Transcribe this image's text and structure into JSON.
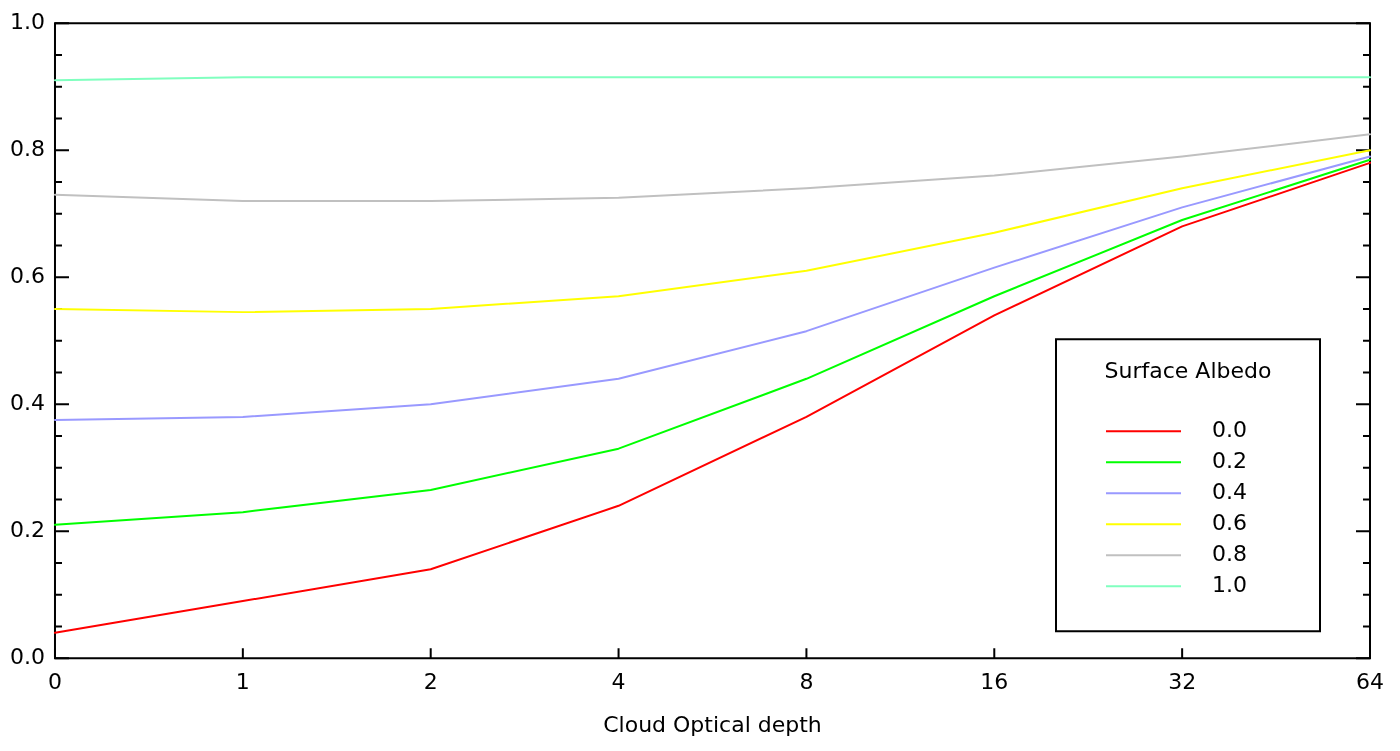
{
  "chart_data": {
    "type": "line",
    "xlabel": "Cloud Optical depth",
    "legend_title": "Surface Albedo",
    "legend": "bottom right",
    "grid": false,
    "marker": "none",
    "line_style": "solid",
    "categories": [
      "0",
      "1",
      "2",
      "4",
      "8",
      "16",
      "32",
      "64"
    ],
    "ylim": [
      0,
      1
    ],
    "yticks": [
      {
        "value": 0,
        "label": "0.0"
      },
      {
        "value": 0.05,
        "label": null
      },
      {
        "value": 0.1,
        "label": null
      },
      {
        "value": 0.15,
        "label": null
      },
      {
        "value": 0.2,
        "label": "0.2"
      },
      {
        "value": 0.25,
        "label": null
      },
      {
        "value": 0.3,
        "label": null
      },
      {
        "value": 0.35,
        "label": null
      },
      {
        "value": 0.4,
        "label": "0.4"
      },
      {
        "value": 0.45,
        "label": null
      },
      {
        "value": 0.5,
        "label": null
      },
      {
        "value": 0.55,
        "label": null
      },
      {
        "value": 0.6,
        "label": "0.6"
      },
      {
        "value": 0.65,
        "label": null
      },
      {
        "value": 0.7,
        "label": null
      },
      {
        "value": 0.75,
        "label": null
      },
      {
        "value": 0.8,
        "label": "0.8"
      },
      {
        "value": 0.85,
        "label": null
      },
      {
        "value": 0.9,
        "label": null
      },
      {
        "value": 0.95,
        "label": null
      },
      {
        "value": 1,
        "label": "1.0"
      }
    ],
    "series": [
      {
        "name": "0.0",
        "color": "#ff0000",
        "values": [
          0.04,
          0.09,
          0.14,
          0.24,
          0.38,
          0.54,
          0.68,
          0.78
        ]
      },
      {
        "name": "0.2",
        "color": "#00ff00",
        "values": [
          0.21,
          0.23,
          0.265,
          0.33,
          0.44,
          0.57,
          0.69,
          0.785
        ]
      },
      {
        "name": "0.4",
        "color": "#9999ff",
        "values": [
          0.375,
          0.38,
          0.4,
          0.44,
          0.515,
          0.615,
          0.71,
          0.79
        ]
      },
      {
        "name": "0.6",
        "color": "#ffff00",
        "values": [
          0.55,
          0.545,
          0.55,
          0.57,
          0.61,
          0.67,
          0.74,
          0.8
        ]
      },
      {
        "name": "0.8",
        "color": "#c0c0c0",
        "values": [
          0.73,
          0.72,
          0.72,
          0.725,
          0.74,
          0.76,
          0.79,
          0.825
        ]
      },
      {
        "name": "1.0",
        "color": "#80ffbf",
        "values": [
          0.91,
          0.915,
          0.915,
          0.915,
          0.915,
          0.915,
          0.915,
          0.915
        ]
      }
    ]
  }
}
